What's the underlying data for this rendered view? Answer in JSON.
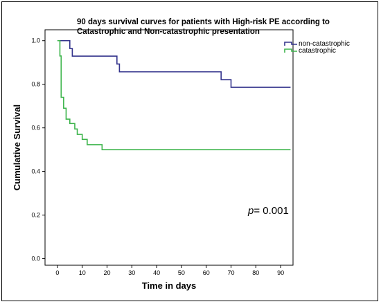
{
  "chart_data": {
    "type": "line",
    "step": true,
    "title": "90 days survival curves for patients with High-risk PE according to Catastrophic and Non-catastrophic presentation",
    "xlabel": "Time in days",
    "ylabel": "Cumulative Survival",
    "xlim": [
      -5,
      95
    ],
    "ylim": [
      -0.03,
      1.05
    ],
    "xticks": [
      0,
      10,
      20,
      30,
      40,
      50,
      60,
      70,
      80,
      90
    ],
    "yticks": [
      0.0,
      0.2,
      0.4,
      0.6,
      0.8,
      1.0
    ],
    "ytick_labels": [
      "0.0",
      "0.2",
      "0.4",
      "0.6",
      "0.8",
      "1.0"
    ],
    "grid": false,
    "legend_position": "top-right",
    "series": [
      {
        "name": "non-catastrophic",
        "color": "#33338c",
        "x": [
          0,
          5,
          6,
          24,
          25,
          66,
          70,
          94
        ],
        "y": [
          1.0,
          0.964,
          0.929,
          0.893,
          0.857,
          0.821,
          0.786,
          0.786
        ]
      },
      {
        "name": "catastrophic",
        "color": "#3cb44b",
        "x": [
          0,
          1,
          1.5,
          2.5,
          3.5,
          5,
          7,
          8,
          10,
          12,
          18,
          94
        ],
        "y": [
          1.0,
          0.93,
          0.74,
          0.69,
          0.64,
          0.62,
          0.595,
          0.57,
          0.547,
          0.523,
          0.5,
          0.5
        ]
      }
    ],
    "annotation": {
      "prefix": "p",
      "value": "= 0.001"
    }
  }
}
